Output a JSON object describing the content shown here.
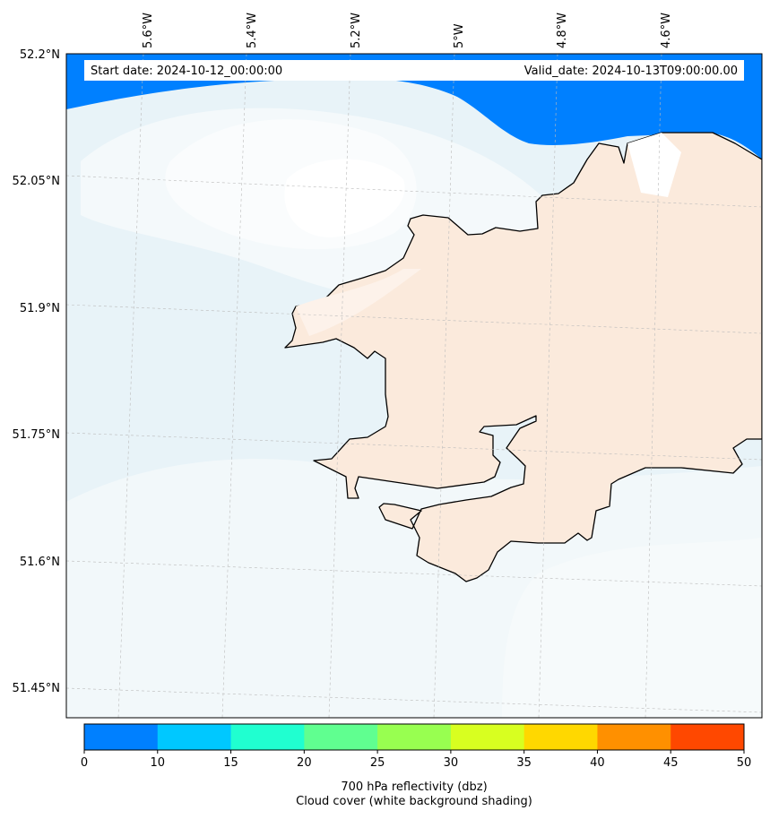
{
  "map": {
    "start_date_label": "Start date: 2024-10-12_00:00:00",
    "valid_date_label": "Valid_date: 2024-10-13T09:00:00.00",
    "longitude_labels": [
      "5.6°W",
      "5.4°W",
      "5.2°W",
      "5°W",
      "4.8°W",
      "4.6°W"
    ],
    "latitude_labels": [
      "52.2°N",
      "52.05°N",
      "51.9°N",
      "51.75°N",
      "51.6°N",
      "51.45°N"
    ],
    "colors": {
      "sea_water": "#0080ff",
      "land_fill": "#fbeadc",
      "cloud_light": "#f4f9fb",
      "cloud_blue": "#e8f3f8",
      "coastline": "#000000"
    }
  },
  "colorbar": {
    "ticks": [
      "0",
      "10",
      "15",
      "20",
      "25",
      "30",
      "35",
      "40",
      "45",
      "50"
    ],
    "colors": [
      "#0080ff",
      "#00c8ff",
      "#20ffd0",
      "#60ff90",
      "#98ff50",
      "#d8ff20",
      "#ffd800",
      "#ff9000",
      "#ff4800"
    ],
    "label_line1": "700 hPa reflectivity (dbz)",
    "label_line2": "Cloud cover (white background shading)"
  }
}
